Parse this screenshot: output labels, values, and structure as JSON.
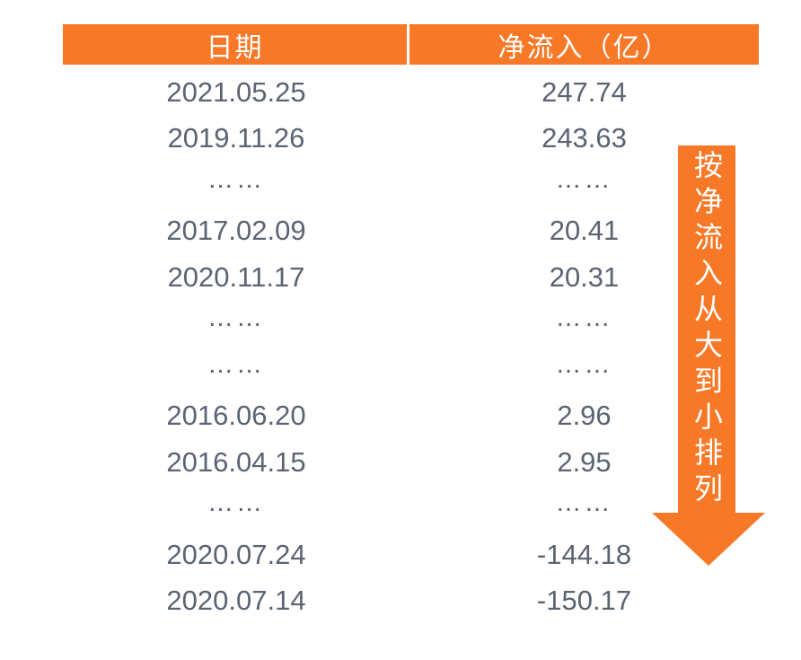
{
  "colors": {
    "accent_orange": "#F77928",
    "body_text": "#5A6472",
    "header_text": "#FFFFFF",
    "background": "#FFFFFF"
  },
  "table": {
    "columns": [
      {
        "label": "日期"
      },
      {
        "label": "净流入（亿）"
      }
    ],
    "rows": [
      {
        "date": "2021.05.25",
        "value": "247.74"
      },
      {
        "date": "2019.11.26",
        "value": "243.63"
      },
      {
        "date": "……",
        "value": "……"
      },
      {
        "date": "2017.02.09",
        "value": "20.41"
      },
      {
        "date": "2020.11.17",
        "value": "20.31"
      },
      {
        "date": "……",
        "value": "……"
      },
      {
        "date": "……",
        "value": "……"
      },
      {
        "date": "2016.06.20",
        "value": "2.96"
      },
      {
        "date": "2016.04.15",
        "value": "2.95"
      },
      {
        "date": "……",
        "value": "……"
      },
      {
        "date": "2020.07.24",
        "value": "-144.18"
      },
      {
        "date": "2020.07.14",
        "value": "-150.17"
      }
    ]
  },
  "annotation": {
    "arrow_label": "按净流入从大到小排列"
  },
  "chart_data": {
    "type": "table",
    "title": "",
    "columns": [
      "日期",
      "净流入（亿）"
    ],
    "rows": [
      [
        "2021.05.25",
        247.74
      ],
      [
        "2019.11.26",
        243.63
      ],
      [
        "……",
        "……"
      ],
      [
        "2017.02.09",
        20.41
      ],
      [
        "2020.11.17",
        20.31
      ],
      [
        "……",
        "……"
      ],
      [
        "……",
        "……"
      ],
      [
        "2016.06.20",
        2.96
      ],
      [
        "2016.04.15",
        2.95
      ],
      [
        "……",
        "……"
      ],
      [
        "2020.07.24",
        -144.18
      ],
      [
        "2020.07.14",
        -150.17
      ]
    ],
    "annotations": [
      "按净流入从大到小排列"
    ]
  }
}
